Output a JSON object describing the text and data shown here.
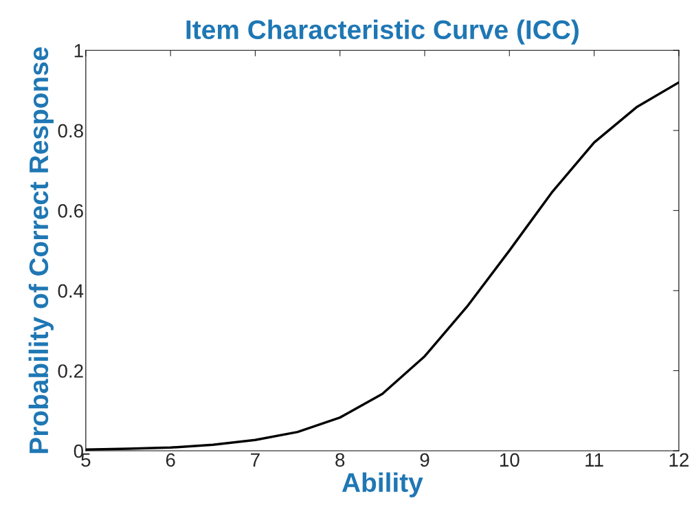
{
  "chart_data": {
    "type": "line",
    "title": "Item Characteristic Curve (ICC)",
    "xlabel": "Ability",
    "ylabel": "Probability of Correct Response",
    "x": [
      5,
      5.5,
      6,
      6.5,
      7,
      7.5,
      8,
      8.5,
      9,
      9.5,
      10,
      10.5,
      11,
      11.5,
      12
    ],
    "series": [
      {
        "color": "#000000",
        "values": [
          0.003,
          0.005,
          0.008,
          0.015,
          0.027,
          0.047,
          0.083,
          0.142,
          0.236,
          0.36,
          0.5,
          0.645,
          0.77,
          0.858,
          0.92
        ]
      }
    ],
    "xlim": [
      5,
      12
    ],
    "xticks": [
      5,
      6,
      7,
      8,
      9,
      10,
      11,
      12
    ],
    "ylim": [
      0,
      1
    ],
    "yticks": [
      0,
      0.2,
      0.4,
      0.6,
      0.8,
      1
    ],
    "grid": false,
    "marker": "none",
    "line_style": "solid"
  }
}
